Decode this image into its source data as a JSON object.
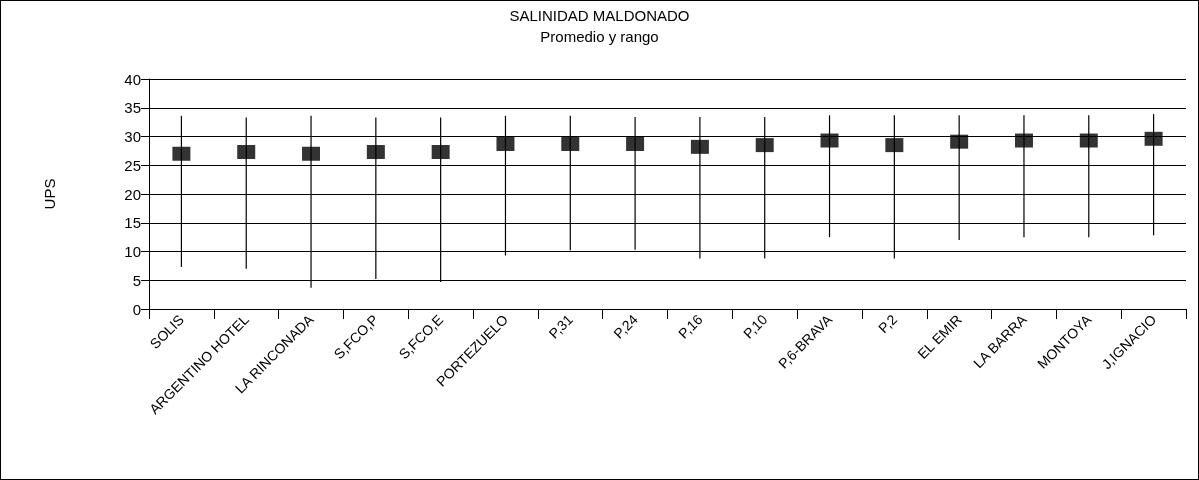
{
  "chart_data": {
    "type": "scatter",
    "title": "SALINIDAD MALDONADO",
    "subtitle": "Promedio y rango",
    "ylabel": "UPS",
    "categories": [
      "SOLIS",
      "ARGENTINO HOTEL",
      "LA RINCONADA",
      "S,FCO,P",
      "S,FCO,E",
      "PORTEZUELO",
      "P,31",
      "P,24",
      "P,16",
      "P,10",
      "P,6-BRAVA",
      "P,2",
      "EL EMIR",
      "LA BARRA",
      "MONTOYA",
      "J,IGNACIO"
    ],
    "values": [
      27.0,
      27.3,
      27.0,
      27.3,
      27.3,
      28.7,
      28.7,
      28.7,
      28.2,
      28.5,
      29.3,
      28.5,
      29.1,
      29.3,
      29.3,
      29.6
    ],
    "errors": [
      [
        7.3,
        33.6
      ],
      [
        7.0,
        33.3
      ],
      [
        3.7,
        33.6
      ],
      [
        5.2,
        33.3
      ],
      [
        4.7,
        33.3
      ],
      [
        9.3,
        33.6
      ],
      [
        10.2,
        33.6
      ],
      [
        10.3,
        33.4
      ],
      [
        8.8,
        33.4
      ],
      [
        8.8,
        33.4
      ],
      [
        12.5,
        33.7
      ],
      [
        8.8,
        33.7
      ],
      [
        12.0,
        33.7
      ],
      [
        12.5,
        33.7
      ],
      [
        12.5,
        33.7
      ],
      [
        12.8,
        33.9
      ]
    ],
    "color": "#000000",
    "marker": "square",
    "ylim": [
      0,
      40
    ],
    "yticks": [
      0,
      5,
      10,
      15,
      20,
      25,
      30,
      35,
      40
    ],
    "grid": "y"
  }
}
